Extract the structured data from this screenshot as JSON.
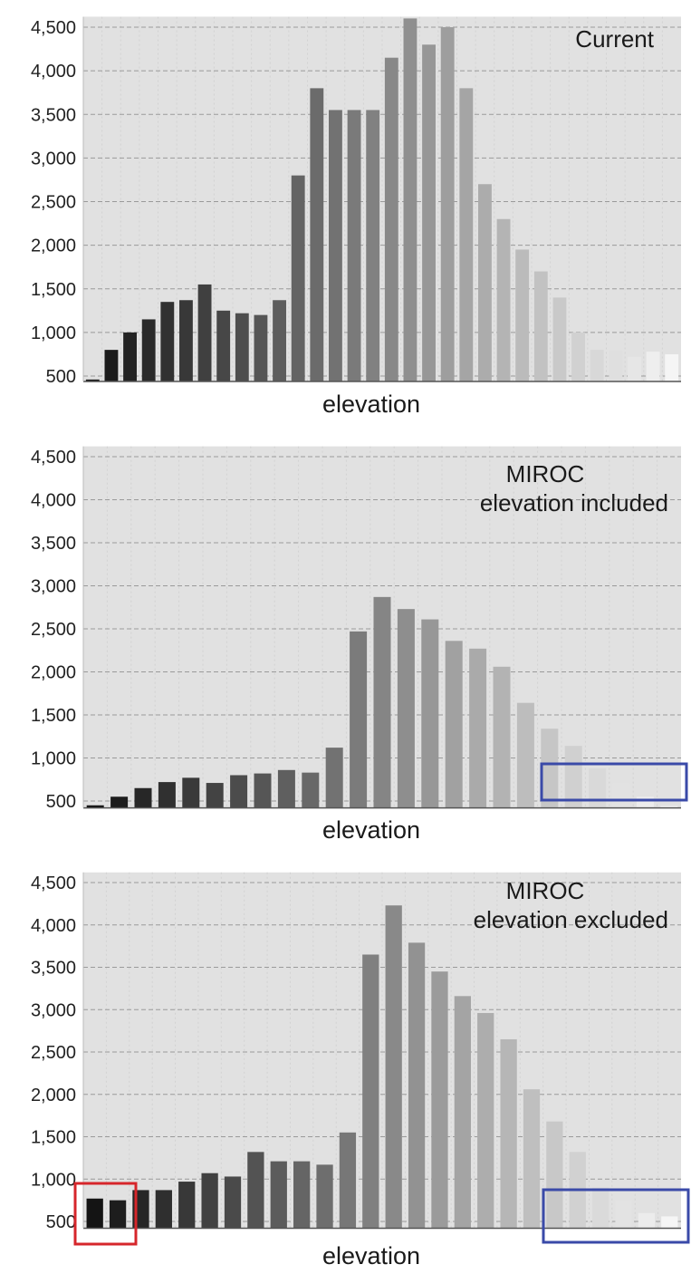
{
  "chart_data": [
    {
      "type": "bar",
      "title": "Current",
      "xlabel": "elevation",
      "ylabel": "",
      "yticks": [
        "500",
        "1,000",
        "1,500",
        "2,000",
        "2,500",
        "3,000",
        "3,500",
        "4,000",
        "4,500"
      ],
      "ylim": [
        420,
        4620
      ],
      "grid": true,
      "values": [
        460,
        800,
        1000,
        1150,
        1350,
        1370,
        1550,
        1250,
        1220,
        1200,
        1370,
        2800,
        3800,
        3550,
        3550,
        3550,
        4150,
        4600,
        4300,
        4500,
        3800,
        2700,
        2300,
        1950,
        1700,
        1400,
        1000,
        800,
        800,
        720,
        780,
        750
      ]
    },
    {
      "type": "bar",
      "title": "MIROC elevation included",
      "xlabel": "elevation",
      "ylabel": "",
      "yticks": [
        "500",
        "1,000",
        "1,500",
        "2,000",
        "2,500",
        "3,000",
        "3,500",
        "4,000",
        "4,500"
      ],
      "ylim": [
        420,
        4620
      ],
      "grid": true,
      "values": [
        450,
        550,
        650,
        720,
        770,
        710,
        800,
        820,
        860,
        830,
        1120,
        2470,
        2870,
        2730,
        2610,
        2360,
        2270,
        2060,
        1640,
        1340,
        1140,
        880,
        710,
        550,
        440
      ],
      "highlight_box": "blue"
    },
    {
      "type": "bar",
      "title": "MIROC elevation excluded",
      "xlabel": "elevation",
      "ylabel": "",
      "yticks": [
        "500",
        "1,000",
        "1,500",
        "2,000",
        "2,500",
        "3,000",
        "3,500",
        "4,000",
        "4,500"
      ],
      "ylim": [
        420,
        4620
      ],
      "grid": true,
      "values": [
        770,
        750,
        870,
        870,
        970,
        1070,
        1030,
        1320,
        1210,
        1210,
        1170,
        1550,
        3650,
        4230,
        3790,
        3450,
        3160,
        2960,
        2650,
        2060,
        1680,
        1320,
        900,
        750,
        600,
        560
      ],
      "highlight_box": "blue",
      "highlight_bars": "red"
    }
  ]
}
